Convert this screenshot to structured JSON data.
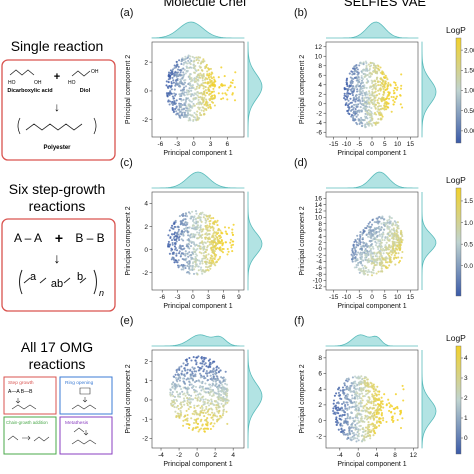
{
  "columns": [
    "Molecule Chef",
    "SELFIES VAE"
  ],
  "rows": [
    {
      "title_lines": [
        "Single reaction"
      ],
      "scheme": {
        "reactant1": "Dicarboxylic acid",
        "plus": "+",
        "reactant2": "Diol",
        "product": "Polyester",
        "arrow": "↓"
      }
    },
    {
      "title_lines": [
        "Six step-growth",
        "reactions"
      ],
      "scheme": {
        "reactant1": "A – A",
        "plus": "+",
        "reactant2": "B – B",
        "arrow": "↓",
        "product_units": [
          "a",
          "ab",
          "b"
        ],
        "subscript": "n"
      }
    },
    {
      "title_lines": [
        "All 17 OMG",
        "reactions"
      ],
      "scheme": {
        "box_labels": [
          "Step growth",
          "Ring opening",
          "Chain-growth addition",
          "Metathesis"
        ],
        "step_example": "A—A   B—B",
        "box_colors": [
          "#d9534f",
          "#3b7bd4",
          "#4aa84a",
          "#8a3fc1"
        ]
      }
    }
  ],
  "colorbar_label": "LogP",
  "colors": {
    "low": "#3a5aa8",
    "mid": "#bfd3d0",
    "high": "#f2d12a",
    "kde_fill": "#9fdcdc",
    "kde_line": "#5bbcbc",
    "frame": "#d9534f"
  },
  "chart_data": [
    {
      "panel": "(a)",
      "type": "scatter",
      "xlabel": "Principal component 1",
      "ylabel": "Principal component 2",
      "xticks": [
        -6,
        -3,
        0,
        3,
        6
      ],
      "yticks": [
        -2,
        0,
        2
      ],
      "xlim": [
        -7.5,
        9
      ],
      "ylim": [
        -3.2,
        3.4
      ],
      "cloud": {
        "shape": "ellipse",
        "cx": -0.5,
        "cy": 0.2,
        "rx": 4.5,
        "ry": 2.3,
        "tail_x": 7.5
      },
      "color_gradient": "x",
      "color_dir": 1,
      "kde_top": {
        "center": -0.5,
        "width": 3.0
      },
      "kde_right": {
        "center": 0.3,
        "width": 1.2
      },
      "colorbar": {
        "ticks": [
          0.0,
          0.5,
          1.0,
          1.5,
          2.0
        ],
        "tick_labels": [
          "0.00",
          "0.50",
          "1.00",
          "1.50",
          "2.00"
        ],
        "range": [
          -0.3,
          2.3
        ]
      }
    },
    {
      "panel": "(b)",
      "type": "scatter",
      "xlabel": "Principal component 1",
      "ylabel": "Principal component 2",
      "xticks": [
        -15,
        -10,
        -5,
        0,
        5,
        10,
        15
      ],
      "yticks": [
        -6,
        -4,
        -2,
        0,
        2,
        4,
        6,
        8,
        10,
        12
      ],
      "xlim": [
        -18,
        18
      ],
      "ylim": [
        -7,
        13
      ],
      "cloud": {
        "shape": "ellipse",
        "cx": -2,
        "cy": 2,
        "rx": 9,
        "ry": 7,
        "tail_x": 12
      },
      "color_gradient": "x",
      "color_dir": 1,
      "kde_top": {
        "center": 1.5,
        "width": 5
      },
      "kde_right": {
        "center": 2.5,
        "width": 3.5
      },
      "colorbar": {
        "ticks": [
          0.0,
          0.5,
          1.0,
          1.5,
          2.0
        ],
        "tick_labels": [
          "0.00",
          "0.50",
          "1.00",
          "1.50",
          "2.00"
        ],
        "range": [
          -0.3,
          2.3
        ]
      }
    },
    {
      "panel": "(c)",
      "type": "scatter",
      "xlabel": "Principal component 1",
      "ylabel": "Principal component 2",
      "xticks": [
        -6,
        -3,
        0,
        3,
        6,
        9
      ],
      "yticks": [
        -2,
        0,
        2,
        4
      ],
      "xlim": [
        -8,
        10
      ],
      "ylim": [
        -3.5,
        5
      ],
      "cloud": {
        "shape": "ellipse",
        "cx": 0.5,
        "cy": 0.6,
        "rx": 5.5,
        "ry": 2.8,
        "tail_x": 8
      },
      "color_gradient": "x",
      "color_dir": 1,
      "kde_top": {
        "center": 1.0,
        "width": 3.0
      },
      "kde_right": {
        "center": 0.5,
        "width": 1.3
      },
      "colorbar": {
        "ticks": [
          0.0,
          0.5,
          1.0,
          1.5
        ],
        "tick_labels": [
          "0.0",
          "0.5",
          "1.0",
          "1.5"
        ],
        "range": [
          -0.7,
          1.8
        ]
      }
    },
    {
      "panel": "(d)",
      "type": "scatter",
      "xlabel": "Principal component 1",
      "ylabel": "Principal component 2",
      "xticks": [
        -15,
        -10,
        -5,
        0,
        5,
        10,
        15
      ],
      "yticks": [
        -12,
        -10,
        -8,
        -6,
        -4,
        -2,
        0,
        2,
        4,
        6,
        8,
        10,
        12,
        14,
        16
      ],
      "xlim": [
        -18,
        18
      ],
      "ylim": [
        -13,
        18
      ],
      "cloud": {
        "shape": "blob",
        "cx": 2,
        "cy": 1,
        "rx": 10,
        "ry": 9,
        "tail_x": 12
      },
      "color_gradient": "xy",
      "color_dir": 1,
      "kde_top": {
        "center": 3,
        "width": 5
      },
      "kde_right": {
        "center": 2,
        "width": 4
      },
      "colorbar": {
        "ticks": [
          0.0,
          0.5,
          1.0,
          1.5
        ],
        "tick_labels": [
          "0.0",
          "0.5",
          "1.0",
          "1.5"
        ],
        "range": [
          -0.7,
          1.8
        ]
      }
    },
    {
      "panel": "(e)",
      "type": "scatter",
      "xlabel": "Principal component 1",
      "ylabel": "Principal component 2",
      "xticks": [
        -4,
        -2,
        0,
        2,
        4
      ],
      "yticks": [
        -2,
        -1,
        0,
        1,
        2
      ],
      "xlim": [
        -5,
        5.2
      ],
      "ylim": [
        -2.5,
        2.6
      ],
      "cloud": {
        "shape": "ellipse",
        "cx": 0.2,
        "cy": 0.3,
        "rx": 3.2,
        "ry": 2.0,
        "tail_x": 3.5
      },
      "color_gradient": "y",
      "color_dir": -1,
      "kde_top": {
        "center": 0.3,
        "width": 1.6,
        "bimodal": true
      },
      "kde_right": {
        "center": 0.2,
        "width": 0.9
      },
      "colorbar": {
        "ticks": [
          0,
          1,
          2,
          3,
          4
        ],
        "tick_labels": [
          "0",
          "1",
          "2",
          "3",
          "4"
        ],
        "range": [
          -0.8,
          4.6
        ]
      }
    },
    {
      "panel": "(f)",
      "type": "scatter",
      "xlabel": "Principal component 1",
      "ylabel": "Principal component 2",
      "xticks": [
        -4,
        0,
        4,
        8,
        12
      ],
      "yticks": [
        -2,
        0,
        2,
        4,
        6,
        8
      ],
      "xlim": [
        -7,
        13
      ],
      "ylim": [
        -3.5,
        9
      ],
      "cloud": {
        "shape": "ellipse",
        "cx": 0,
        "cy": 1.5,
        "rx": 5.5,
        "ry": 4.3,
        "tail_x": 10
      },
      "color_gradient": "x",
      "color_dir": 1,
      "kde_top": {
        "center": 0.5,
        "width": 2.5,
        "bimodal": true
      },
      "kde_right": {
        "center": 1.2,
        "width": 2
      },
      "colorbar": {
        "ticks": [
          0,
          1,
          2,
          3,
          4
        ],
        "tick_labels": [
          "0",
          "1",
          "2",
          "3",
          "4"
        ],
        "range": [
          -0.8,
          4.6
        ]
      }
    }
  ]
}
